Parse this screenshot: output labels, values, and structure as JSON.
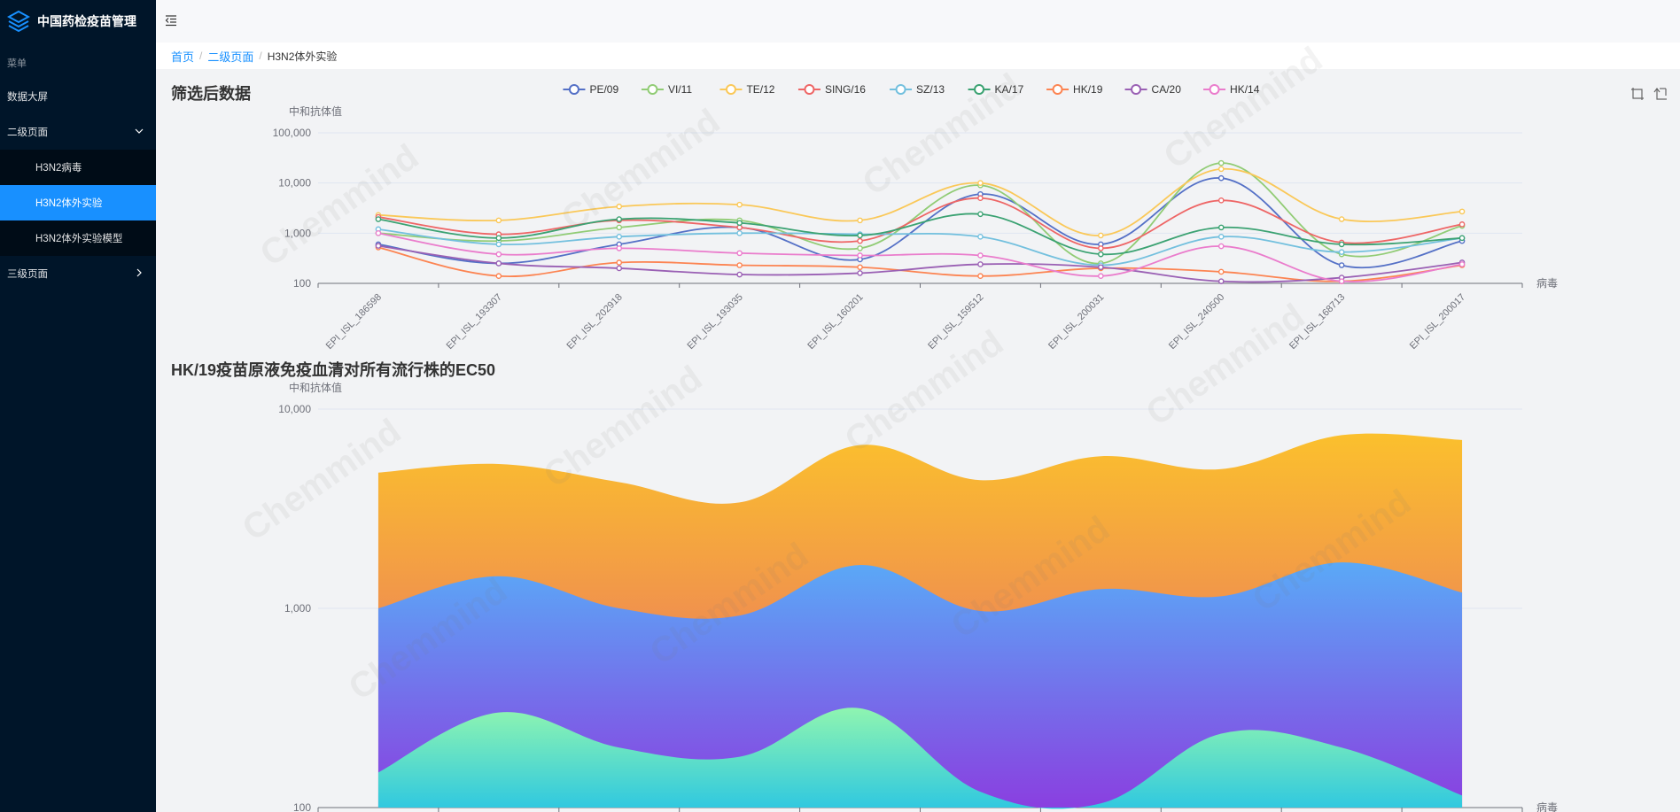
{
  "app": {
    "title": "中国药检疫苗管理"
  },
  "sidebar": {
    "caption": "菜单",
    "items": [
      {
        "label": "数据大屏"
      },
      {
        "label": "二级页面"
      },
      {
        "label": "三级页面"
      }
    ],
    "subitems": [
      {
        "label": "H3N2病毒"
      },
      {
        "label": "H3N2体外实验"
      },
      {
        "label": "H3N2体外实验模型"
      }
    ]
  },
  "breadcrumb": {
    "home": "首页",
    "level2": "二级页面",
    "current": "H3N2体外实验",
    "separator": "/"
  },
  "watermark": {
    "text": "Chemmind"
  },
  "sections": [
    {
      "title": "筛选后数据"
    },
    {
      "title": "HK/19疫苗原液免疫血清对所有流行株的EC50"
    }
  ],
  "chart_data": [
    {
      "type": "line",
      "title": "筛选后数据",
      "ylabel": "中和抗体值",
      "xlabel": "病毒",
      "yscale": "log",
      "ylim": [
        100,
        100000
      ],
      "yticks": [
        "100",
        "1,000",
        "10,000",
        "100,000"
      ],
      "legend_position": "top-center",
      "categories": [
        "EPI_ISL_186598",
        "EPI_ISL_193307",
        "EPI_ISL_202918",
        "EPI_ISL_193035",
        "EPI_ISL_160201",
        "EPI_ISL_159512",
        "EPI_ISL_200031",
        "EPI_ISL_240500",
        "EPI_ISL_168713",
        "EPI_ISL_200017"
      ],
      "series": [
        {
          "name": "PE/09",
          "color": "#5470c6",
          "values": [
            600,
            250,
            600,
            1300,
            300,
            6000,
            600,
            12500,
            230,
            700
          ]
        },
        {
          "name": "VI/11",
          "color": "#91cc75",
          "values": [
            1000,
            700,
            1300,
            1800,
            500,
            9000,
            250,
            25000,
            380,
            1400
          ]
        },
        {
          "name": "TE/12",
          "color": "#fac858",
          "values": [
            2300,
            1800,
            3400,
            3700,
            1800,
            10000,
            900,
            19000,
            1900,
            2700
          ]
        },
        {
          "name": "SING/16",
          "color": "#ee6666",
          "values": [
            2100,
            950,
            1800,
            1300,
            700,
            5000,
            500,
            4500,
            650,
            1500
          ]
        },
        {
          "name": "SZ/13",
          "color": "#73c0de",
          "values": [
            1200,
            600,
            850,
            1000,
            950,
            850,
            230,
            850,
            420,
            800
          ]
        },
        {
          "name": "KA/17",
          "color": "#3ba272",
          "values": [
            1900,
            800,
            1900,
            1600,
            900,
            2400,
            380,
            1300,
            600,
            800
          ]
        },
        {
          "name": "HK/19",
          "color": "#fc8452",
          "values": [
            520,
            140,
            260,
            230,
            210,
            140,
            200,
            170,
            110,
            230
          ]
        },
        {
          "name": "CA/20",
          "color": "#9a60b4",
          "values": [
            560,
            250,
            200,
            150,
            160,
            240,
            210,
            110,
            130,
            260
          ]
        },
        {
          "name": "HK/14",
          "color": "#ea7ccc",
          "values": [
            1000,
            380,
            500,
            400,
            360,
            360,
            140,
            550,
            110,
            240
          ]
        }
      ]
    },
    {
      "type": "area",
      "title": "HK/19疫苗原液免疫血清对所有流行株的EC50",
      "ylabel": "中和抗体值",
      "xlabel": "病毒",
      "yscale": "log",
      "ylim": [
        100,
        10000
      ],
      "yticks": [
        "100",
        "1,000",
        "10,000"
      ],
      "series": [
        {
          "name": "",
          "gradient": [
            "#fbc02d",
            "#e5626e"
          ],
          "values": [
            4800,
            5300,
            4300,
            3400,
            6600,
            4400,
            5800,
            5000,
            7400,
            7000
          ]
        },
        {
          "name": "",
          "gradient": [
            "#5aa9f7",
            "#8a3fe0"
          ],
          "values": [
            1000,
            1450,
            1000,
            920,
            1650,
            970,
            1250,
            1150,
            1700,
            1200
          ]
        },
        {
          "name": "",
          "gradient": [
            "#8ff5b0",
            "#2fc8e0"
          ],
          "values": [
            150,
            300,
            200,
            180,
            315,
            120,
            105,
            235,
            200,
            115
          ]
        }
      ]
    }
  ]
}
